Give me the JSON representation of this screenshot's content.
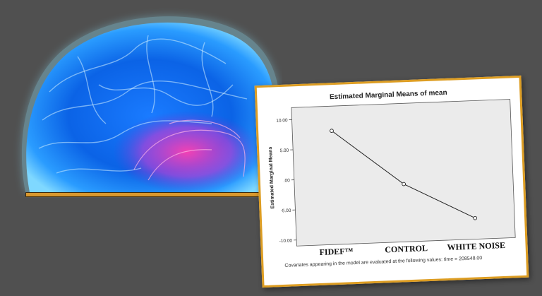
{
  "colors": {
    "background": "#505050",
    "card_border": "#dd9d22",
    "plot_background": "#ebebeb",
    "line": "#222222",
    "shelf": "#d9982e"
  },
  "image": {
    "subject": "brain-scan-illustration"
  },
  "chart_data": {
    "type": "line",
    "title": "Estimated Marginal Means of mean",
    "xlabel": "",
    "ylabel": "Estimated Marginal Means",
    "categories": [
      "FIDEF™",
      "CONTROL",
      "WHITE NOISE"
    ],
    "series": [
      {
        "values": [
          7.9,
          -1.4,
          -7.5
        ]
      }
    ],
    "ylim": [
      -11,
      12
    ],
    "yticks": [
      10,
      5,
      0,
      -5,
      -10
    ],
    "ytick_labels": [
      "10.00",
      "5.00",
      ".00",
      "-5.00",
      "-10.00"
    ],
    "grid": false,
    "footnote": "Covariates appearing in the model are evaluated at the following values: time = 208548.00"
  }
}
